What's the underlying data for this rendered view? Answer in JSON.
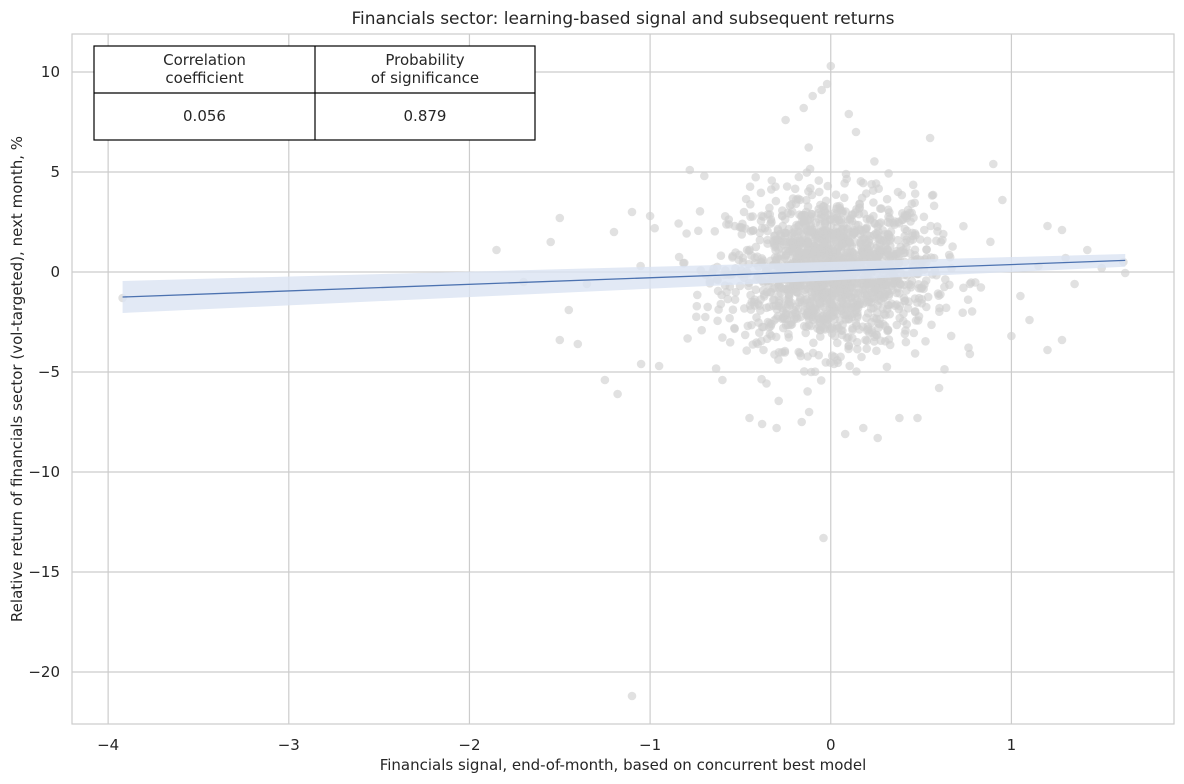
{
  "chart_data": {
    "type": "scatter",
    "title": "Financials sector: learning-based signal and subsequent returns",
    "xlabel": "Financials signal, end-of-month, based on concurrent best model",
    "ylabel": "Relative return of financials sector (vol-targeted), next month, %",
    "xlim": [
      -4.2,
      1.9
    ],
    "ylim": [
      -22.6,
      11.9
    ],
    "x_ticks": [
      -4,
      -3,
      -2,
      -1,
      0,
      1
    ],
    "y_ticks": [
      10,
      5,
      0,
      -5,
      -10,
      -15,
      -20
    ],
    "x_tick_labels": [
      "−4",
      "−3",
      "−2",
      "−1",
      "0",
      "1"
    ],
    "y_tick_labels": [
      "10",
      "5",
      "0",
      "−5",
      "−10",
      "−15",
      "−20"
    ],
    "grid": true,
    "point_color": "#cfcfcf",
    "line_color": "#4c72b0",
    "band_color": "#dbe4f3",
    "regression": {
      "x": [
        -3.92,
        1.63
      ],
      "y": [
        -1.25,
        0.58
      ],
      "ci_upper": [
        -0.45,
        0.9
      ],
      "ci_lower": [
        -2.05,
        0.26
      ]
    },
    "cluster": {
      "count": 1600,
      "x_mean": 0.0,
      "x_sd": 0.28,
      "y_mean": 0.0,
      "y_sd": 1.9
    },
    "outliers": [
      {
        "x": -3.92,
        "y": -1.3
      },
      {
        "x": -1.85,
        "y": 1.1
      },
      {
        "x": -1.7,
        "y": -0.5
      },
      {
        "x": -1.5,
        "y": 2.7
      },
      {
        "x": -1.55,
        "y": 1.5
      },
      {
        "x": -1.45,
        "y": -1.9
      },
      {
        "x": -1.5,
        "y": -3.4
      },
      {
        "x": -1.4,
        "y": -3.6
      },
      {
        "x": -1.35,
        "y": -0.6
      },
      {
        "x": -1.25,
        "y": -5.4
      },
      {
        "x": -1.2,
        "y": 2.0
      },
      {
        "x": -1.18,
        "y": -6.1
      },
      {
        "x": -1.1,
        "y": 3.0
      },
      {
        "x": -1.1,
        "y": -21.2
      },
      {
        "x": -1.05,
        "y": -4.6
      },
      {
        "x": -1.0,
        "y": 2.8
      },
      {
        "x": -0.95,
        "y": -4.7
      },
      {
        "x": -0.78,
        "y": 5.1
      },
      {
        "x": -0.7,
        "y": 4.8
      },
      {
        "x": -0.6,
        "y": -5.4
      },
      {
        "x": -0.45,
        "y": -7.3
      },
      {
        "x": -0.38,
        "y": -7.6
      },
      {
        "x": -0.3,
        "y": -7.8
      },
      {
        "x": -0.25,
        "y": 7.6
      },
      {
        "x": -0.15,
        "y": 8.2
      },
      {
        "x": -0.12,
        "y": -7.0
      },
      {
        "x": -0.1,
        "y": 8.8
      },
      {
        "x": -0.05,
        "y": 9.1
      },
      {
        "x": -0.04,
        "y": -13.3
      },
      {
        "x": 0.0,
        "y": 10.3
      },
      {
        "x": -0.02,
        "y": 9.4
      },
      {
        "x": 0.08,
        "y": -8.1
      },
      {
        "x": 0.14,
        "y": 7.0
      },
      {
        "x": 0.1,
        "y": 7.9
      },
      {
        "x": 0.18,
        "y": -7.8
      },
      {
        "x": 0.26,
        "y": -8.3
      },
      {
        "x": 0.38,
        "y": -7.3
      },
      {
        "x": 0.48,
        "y": -7.3
      },
      {
        "x": 0.55,
        "y": 6.7
      },
      {
        "x": 0.6,
        "y": -5.8
      },
      {
        "x": 0.77,
        "y": -4.1
      },
      {
        "x": 0.9,
        "y": 5.4
      },
      {
        "x": 0.95,
        "y": 3.6
      },
      {
        "x": 1.0,
        "y": -3.2
      },
      {
        "x": 1.05,
        "y": -1.2
      },
      {
        "x": 1.1,
        "y": -2.4
      },
      {
        "x": 1.15,
        "y": 0.3
      },
      {
        "x": 1.2,
        "y": 2.3
      },
      {
        "x": 1.2,
        "y": -3.9
      },
      {
        "x": 1.28,
        "y": 2.1
      },
      {
        "x": 1.3,
        "y": 0.7
      },
      {
        "x": 1.28,
        "y": -3.4
      },
      {
        "x": 1.35,
        "y": -0.6
      },
      {
        "x": 1.42,
        "y": 1.1
      },
      {
        "x": 1.5,
        "y": 0.2
      },
      {
        "x": 1.62,
        "y": 0.5
      },
      {
        "x": 1.63,
        "y": -0.05
      }
    ]
  },
  "table": {
    "headers": [
      "Correlation\ncoefficient",
      "Probability\nof significance"
    ],
    "values": [
      "0.056",
      "0.879"
    ]
  }
}
